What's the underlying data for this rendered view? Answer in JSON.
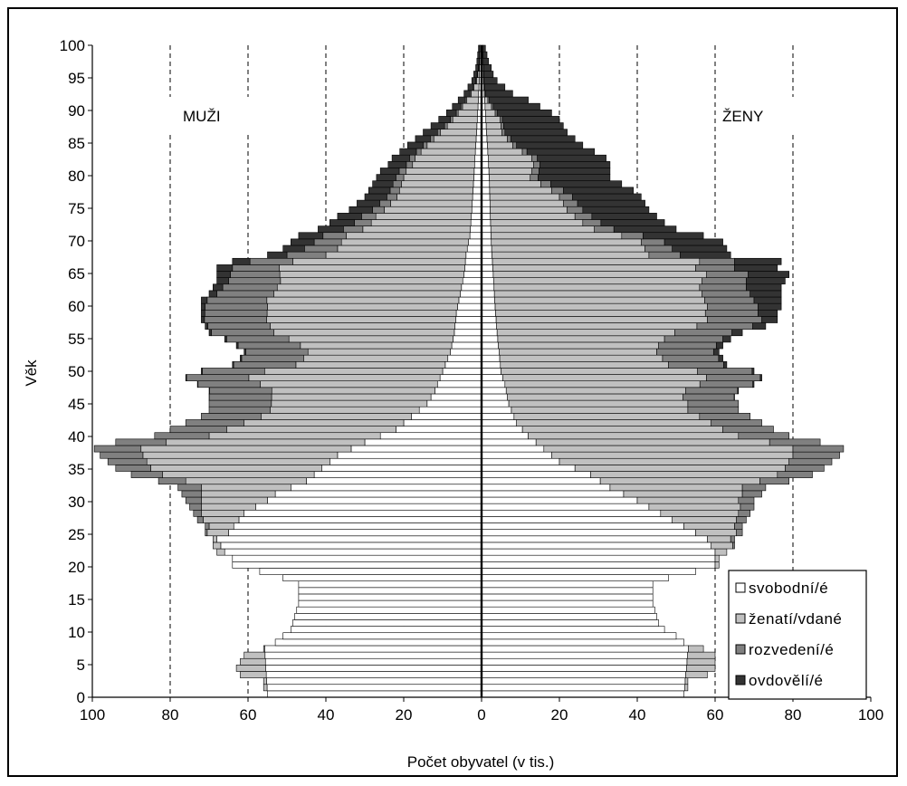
{
  "chart_data": {
    "type": "bar",
    "orientation": "horizontal",
    "stacked": true,
    "subtype": "population-pyramid",
    "xlabel": "Počet obyvatel (v tis.)",
    "ylabel": "Věk",
    "xlim": [
      -100,
      100
    ],
    "ylim": [
      0,
      100
    ],
    "x_ticks": [
      100,
      80,
      60,
      40,
      20,
      0,
      20,
      40,
      60,
      80,
      100
    ],
    "y_ticks": [
      0,
      5,
      10,
      15,
      20,
      25,
      30,
      35,
      40,
      45,
      50,
      55,
      60,
      65,
      70,
      75,
      80,
      85,
      90,
      95,
      100
    ],
    "grid": "vertical-dashed",
    "legend_position": "bottom-right",
    "labels": {
      "left": "MUŽI",
      "right": "ŽENY"
    },
    "colors": {
      "svobodni": "#ffffff",
      "zenati": "#c0c0c0",
      "rozvedeni": "#808080",
      "ovdoveli": "#333333"
    },
    "series": [
      {
        "name": "svobodní/é",
        "key": "svobodni"
      },
      {
        "name": "ženatí/vdané",
        "key": "zenati"
      },
      {
        "name": "rozvedení/é",
        "key": "rozvedeni"
      },
      {
        "name": "ovdovělí/é",
        "key": "ovdoveli"
      }
    ],
    "male": {
      "total_anchors": [
        [
          0,
          55
        ],
        [
          1,
          56
        ],
        [
          2,
          56
        ],
        [
          3,
          62
        ],
        [
          4,
          63
        ],
        [
          5,
          62
        ],
        [
          6,
          61
        ],
        [
          7,
          56
        ],
        [
          8,
          53
        ],
        [
          9,
          51
        ],
        [
          10,
          49
        ],
        [
          11,
          48.5
        ],
        [
          12,
          48
        ],
        [
          13,
          47.5
        ],
        [
          14,
          47
        ],
        [
          15,
          47
        ],
        [
          16,
          47
        ],
        [
          17,
          47
        ],
        [
          18,
          51
        ],
        [
          19,
          57
        ],
        [
          20,
          64
        ],
        [
          21,
          64
        ],
        [
          22,
          68
        ],
        [
          23,
          69
        ],
        [
          24,
          69
        ],
        [
          25,
          71
        ],
        [
          26,
          71
        ],
        [
          27,
          73
        ],
        [
          28,
          74
        ],
        [
          29,
          75
        ],
        [
          30,
          76
        ],
        [
          31,
          77
        ],
        [
          32,
          78
        ],
        [
          33,
          83
        ],
        [
          34,
          90
        ],
        [
          35,
          94
        ],
        [
          36,
          96
        ],
        [
          37,
          98
        ],
        [
          38,
          99.5
        ],
        [
          39,
          94
        ],
        [
          40,
          84
        ],
        [
          41,
          80
        ],
        [
          42,
          76
        ],
        [
          43,
          72
        ],
        [
          44,
          70
        ],
        [
          45,
          70
        ],
        [
          46,
          70
        ],
        [
          47,
          70
        ],
        [
          48,
          73
        ],
        [
          49,
          76
        ],
        [
          50,
          72
        ],
        [
          51,
          64
        ],
        [
          52,
          62
        ],
        [
          53,
          61
        ],
        [
          54,
          63
        ],
        [
          55,
          66
        ],
        [
          56,
          70
        ],
        [
          57,
          71
        ],
        [
          58,
          72
        ],
        [
          59,
          72
        ],
        [
          60,
          72
        ],
        [
          61,
          72
        ],
        [
          62,
          70
        ],
        [
          63,
          69
        ],
        [
          64,
          68
        ],
        [
          65,
          68
        ],
        [
          66,
          68
        ],
        [
          67,
          64
        ],
        [
          68,
          55
        ],
        [
          69,
          51
        ],
        [
          70,
          49
        ],
        [
          71,
          47
        ],
        [
          72,
          42
        ],
        [
          73,
          39
        ],
        [
          74,
          37
        ],
        [
          75,
          34
        ],
        [
          76,
          32
        ],
        [
          77,
          30
        ],
        [
          78,
          29
        ],
        [
          79,
          28
        ],
        [
          80,
          27
        ],
        [
          81,
          26
        ],
        [
          82,
          24
        ],
        [
          83,
          23
        ],
        [
          84,
          21
        ],
        [
          85,
          19
        ],
        [
          86,
          17
        ],
        [
          87,
          15
        ],
        [
          88,
          13
        ],
        [
          89,
          11
        ],
        [
          90,
          9
        ],
        [
          91,
          7.5
        ],
        [
          92,
          6
        ],
        [
          93,
          4.5
        ],
        [
          94,
          3.5
        ],
        [
          95,
          2.5
        ],
        [
          96,
          2
        ],
        [
          97,
          1.5
        ],
        [
          98,
          1.2
        ],
        [
          99,
          1
        ],
        [
          100,
          0.8
        ]
      ],
      "single_anchors": [
        [
          0,
          55
        ],
        [
          19,
          57
        ],
        [
          20,
          64
        ],
        [
          24,
          68
        ],
        [
          25,
          65
        ],
        [
          28,
          61
        ],
        [
          30,
          55
        ],
        [
          31,
          53
        ],
        [
          33,
          45
        ],
        [
          35,
          41
        ],
        [
          37,
          37
        ],
        [
          39,
          30
        ],
        [
          40,
          26
        ],
        [
          41,
          22
        ],
        [
          43,
          18
        ],
        [
          45,
          14
        ],
        [
          47,
          12
        ],
        [
          50,
          10
        ],
        [
          53,
          8
        ],
        [
          56,
          7
        ],
        [
          59,
          6.5
        ],
        [
          62,
          5.5
        ],
        [
          65,
          4.5
        ],
        [
          68,
          4
        ],
        [
          71,
          3
        ],
        [
          75,
          2.5
        ],
        [
          80,
          2
        ],
        [
          85,
          1.5
        ],
        [
          90,
          1
        ],
        [
          95,
          0.6
        ],
        [
          100,
          0.4
        ]
      ],
      "widowed_anchors": [
        [
          0,
          0
        ],
        [
          45,
          0
        ],
        [
          55,
          0.5
        ],
        [
          60,
          1
        ],
        [
          64,
          3
        ],
        [
          66,
          4
        ],
        [
          68,
          5
        ],
        [
          70,
          6
        ],
        [
          72,
          6.5
        ],
        [
          75,
          6
        ],
        [
          78,
          5.5
        ],
        [
          80,
          5
        ],
        [
          83,
          4.5
        ],
        [
          85,
          4
        ],
        [
          88,
          3.5
        ],
        [
          90,
          2.5
        ],
        [
          93,
          1.5
        ],
        [
          95,
          1
        ],
        [
          100,
          0.3
        ]
      ],
      "divorced_anchors": [
        [
          0,
          0
        ],
        [
          24,
          0
        ],
        [
          26,
          1
        ],
        [
          28,
          2
        ],
        [
          30,
          4
        ],
        [
          32,
          6
        ],
        [
          34,
          8
        ],
        [
          36,
          10
        ],
        [
          38,
          12
        ],
        [
          40,
          14
        ],
        [
          42,
          15
        ],
        [
          45,
          16
        ],
        [
          50,
          16
        ],
        [
          55,
          16
        ],
        [
          60,
          16
        ],
        [
          63,
          14
        ],
        [
          66,
          12
        ],
        [
          68,
          10
        ],
        [
          70,
          7
        ],
        [
          72,
          5
        ],
        [
          75,
          3
        ],
        [
          80,
          2
        ],
        [
          85,
          1
        ],
        [
          90,
          0.5
        ],
        [
          95,
          0.2
        ],
        [
          100,
          0
        ]
      ]
    },
    "female": {
      "total_anchors": [
        [
          0,
          52
        ],
        [
          1,
          53
        ],
        [
          2,
          53
        ],
        [
          3,
          58
        ],
        [
          4,
          60
        ],
        [
          5,
          60
        ],
        [
          6,
          60
        ],
        [
          7,
          57
        ],
        [
          8,
          52
        ],
        [
          9,
          50
        ],
        [
          10,
          47
        ],
        [
          11,
          45.5
        ],
        [
          12,
          45
        ],
        [
          13,
          44.5
        ],
        [
          14,
          44
        ],
        [
          15,
          44
        ],
        [
          16,
          44
        ],
        [
          17,
          44
        ],
        [
          18,
          48
        ],
        [
          19,
          55
        ],
        [
          20,
          61
        ],
        [
          21,
          61
        ],
        [
          22,
          63
        ],
        [
          23,
          65
        ],
        [
          24,
          65
        ],
        [
          25,
          67
        ],
        [
          26,
          67
        ],
        [
          27,
          68
        ],
        [
          28,
          69
        ],
        [
          29,
          70
        ],
        [
          30,
          70
        ],
        [
          31,
          72
        ],
        [
          32,
          73
        ],
        [
          33,
          79
        ],
        [
          34,
          85
        ],
        [
          35,
          88
        ],
        [
          36,
          90
        ],
        [
          37,
          92
        ],
        [
          38,
          93
        ],
        [
          39,
          87
        ],
        [
          40,
          79
        ],
        [
          41,
          75
        ],
        [
          42,
          72
        ],
        [
          43,
          69
        ],
        [
          44,
          66
        ],
        [
          45,
          66
        ],
        [
          46,
          65
        ],
        [
          47,
          66
        ],
        [
          48,
          70
        ],
        [
          49,
          72
        ],
        [
          50,
          70
        ],
        [
          51,
          63
        ],
        [
          52,
          62
        ],
        [
          53,
          61
        ],
        [
          54,
          62
        ],
        [
          55,
          64
        ],
        [
          56,
          67
        ],
        [
          57,
          73
        ],
        [
          58,
          76
        ],
        [
          59,
          76
        ],
        [
          60,
          77
        ],
        [
          61,
          77
        ],
        [
          62,
          77
        ],
        [
          63,
          77
        ],
        [
          64,
          78
        ],
        [
          65,
          79
        ],
        [
          66,
          76
        ],
        [
          67,
          77
        ],
        [
          68,
          64
        ],
        [
          69,
          63
        ],
        [
          70,
          62
        ],
        [
          71,
          57
        ],
        [
          72,
          50
        ],
        [
          73,
          47
        ],
        [
          74,
          45
        ],
        [
          75,
          43
        ],
        [
          76,
          42
        ],
        [
          77,
          41
        ],
        [
          78,
          39
        ],
        [
          79,
          36
        ],
        [
          80,
          33
        ],
        [
          81,
          33
        ],
        [
          82,
          33
        ],
        [
          83,
          32
        ],
        [
          84,
          29
        ],
        [
          85,
          26
        ],
        [
          86,
          24
        ],
        [
          87,
          22
        ],
        [
          88,
          21
        ],
        [
          89,
          20
        ],
        [
          90,
          18
        ],
        [
          91,
          15
        ],
        [
          92,
          12
        ],
        [
          93,
          8
        ],
        [
          94,
          6
        ],
        [
          95,
          4
        ],
        [
          96,
          3
        ],
        [
          97,
          2.5
        ],
        [
          98,
          1.8
        ],
        [
          99,
          1.4
        ],
        [
          100,
          1
        ]
      ],
      "single_anchors": [
        [
          0,
          52
        ],
        [
          19,
          55
        ],
        [
          20,
          60
        ],
        [
          22,
          60
        ],
        [
          24,
          58
        ],
        [
          26,
          52
        ],
        [
          28,
          46
        ],
        [
          30,
          40
        ],
        [
          32,
          33
        ],
        [
          34,
          28
        ],
        [
          36,
          20
        ],
        [
          38,
          16
        ],
        [
          40,
          12
        ],
        [
          42,
          9
        ],
        [
          45,
          7
        ],
        [
          48,
          6
        ],
        [
          50,
          5
        ],
        [
          53,
          4.5
        ],
        [
          56,
          4
        ],
        [
          60,
          3.5
        ],
        [
          65,
          3
        ],
        [
          70,
          2.5
        ],
        [
          75,
          2.2
        ],
        [
          80,
          2
        ],
        [
          85,
          1.5
        ],
        [
          90,
          1
        ],
        [
          95,
          0.5
        ],
        [
          100,
          0.3
        ]
      ],
      "widowed_anchors": [
        [
          0,
          0
        ],
        [
          45,
          0
        ],
        [
          50,
          0.5
        ],
        [
          55,
          2
        ],
        [
          58,
          4
        ],
        [
          60,
          6
        ],
        [
          62,
          8
        ],
        [
          64,
          10
        ],
        [
          66,
          11
        ],
        [
          68,
          13
        ],
        [
          70,
          15
        ],
        [
          72,
          16
        ],
        [
          75,
          17
        ],
        [
          78,
          18
        ],
        [
          80,
          18.5
        ],
        [
          82,
          18
        ],
        [
          85,
          17
        ],
        [
          87,
          16
        ],
        [
          90,
          14
        ],
        [
          92,
          10
        ],
        [
          94,
          6
        ],
        [
          96,
          3
        ],
        [
          98,
          1.6
        ],
        [
          100,
          0.8
        ]
      ],
      "divorced_anchors": [
        [
          0,
          0
        ],
        [
          22,
          0
        ],
        [
          24,
          1
        ],
        [
          26,
          2
        ],
        [
          28,
          3
        ],
        [
          30,
          4
        ],
        [
          32,
          6
        ],
        [
          34,
          9
        ],
        [
          36,
          11
        ],
        [
          38,
          13
        ],
        [
          40,
          13
        ],
        [
          42,
          13
        ],
        [
          45,
          13
        ],
        [
          50,
          14
        ],
        [
          55,
          15
        ],
        [
          58,
          14
        ],
        [
          60,
          13
        ],
        [
          63,
          12
        ],
        [
          66,
          10
        ],
        [
          68,
          8
        ],
        [
          70,
          6
        ],
        [
          72,
          5
        ],
        [
          75,
          4
        ],
        [
          78,
          3
        ],
        [
          80,
          2
        ],
        [
          85,
          1
        ],
        [
          90,
          0.5
        ],
        [
          95,
          0.2
        ],
        [
          100,
          0
        ]
      ]
    }
  }
}
